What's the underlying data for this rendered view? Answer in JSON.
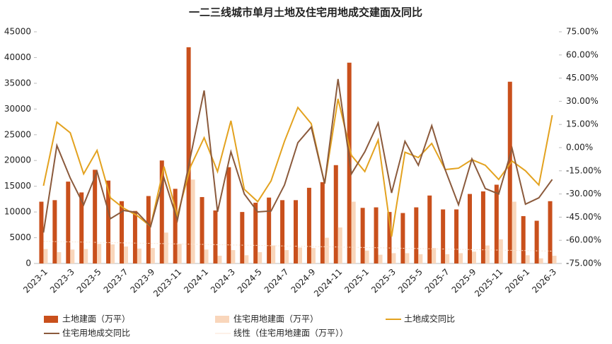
{
  "chart_data": {
    "type": "bar",
    "title": "一二三线城市单月土地及住宅用地成交建面及同比",
    "categories": [
      "2023-1",
      null,
      "2023-3",
      null,
      "2023-5",
      null,
      "2023-7",
      null,
      "2023-9",
      null,
      "2023-11",
      null,
      "2024-1",
      null,
      "2024-3",
      null,
      "2024-5",
      null,
      "2024-7",
      null,
      "2024-9",
      null,
      "2024-11",
      null,
      "2025-1",
      null,
      "2025-3",
      null,
      "2025-5",
      null,
      "2025-7",
      null,
      "2025-9",
      null,
      "2025-11",
      null,
      "2026-1",
      null,
      "2026-3"
    ],
    "ylim": [
      0,
      45000
    ],
    "yticks": [
      0,
      5000,
      10000,
      15000,
      20000,
      25000,
      30000,
      35000,
      40000,
      45000
    ],
    "y2lim": [
      -75,
      75
    ],
    "y2ticks": [
      {
        "value": -75,
        "label": "-75.00%"
      },
      {
        "value": -60,
        "label": "-60.00%"
      },
      {
        "value": -45,
        "label": "-45.00%"
      },
      {
        "value": -30,
        "label": "-30.00%"
      },
      {
        "value": -15,
        "label": "-15.00%"
      },
      {
        "value": 0,
        "label": "0.00%"
      },
      {
        "value": 15,
        "label": "15.00%"
      },
      {
        "value": 30,
        "label": "30.00%"
      },
      {
        "value": 45,
        "label": "45.00%"
      },
      {
        "value": 60,
        "label": "60.00%"
      },
      {
        "value": 75,
        "label": "75.00%"
      }
    ],
    "series": [
      {
        "name": "土地建面（万平）",
        "type": "bar",
        "color": "#c9501c",
        "values": [
          12000,
          12300,
          15900,
          13800,
          18200,
          16100,
          12100,
          10200,
          13100,
          20000,
          14500,
          42000,
          12900,
          10300,
          18700,
          10000,
          11800,
          12800,
          12300,
          12300,
          14700,
          15800,
          19100,
          39000,
          10800,
          10900,
          10000,
          9800,
          10900,
          13200,
          10500,
          10500,
          13500,
          14000,
          15300,
          35300,
          9200,
          8300,
          12100
        ]
      },
      {
        "name": "住宅用地建面（万平）",
        "type": "bar",
        "color": "#f9d6bb",
        "values": [
          2800,
          2200,
          2700,
          2800,
          3800,
          3700,
          3300,
          2900,
          3000,
          6000,
          3800,
          16300,
          2700,
          1500,
          2600,
          1600,
          2200,
          3500,
          2600,
          3100,
          3000,
          5000,
          7000,
          12000,
          2500,
          1700,
          2000,
          2000,
          1800,
          3000,
          1800,
          2000,
          2300,
          3500,
          4700,
          12000,
          1600,
          1000,
          1500
        ]
      },
      {
        "name": "土地成交同比",
        "type": "line",
        "axis": "y2",
        "color": "#e3a21f",
        "values": [
          -24.7,
          16.5,
          9.6,
          -17,
          -1.8,
          -32.5,
          -39.3,
          -44,
          -51,
          -12.3,
          -44,
          -12,
          6.4,
          -15.5,
          17.4,
          -27,
          -35,
          -21.5,
          4.1,
          26,
          15.5,
          -23.3,
          31.6,
          -5,
          -15.5,
          5,
          -57.6,
          -3,
          -6.4,
          2.7,
          -14.2,
          -13.3,
          -7.8,
          -11.4,
          -20.6,
          -8.7,
          -15,
          -24.2,
          21
        ]
      },
      {
        "name": "住宅用地成交同比",
        "type": "line",
        "axis": "y2",
        "color": "#8b5a3c",
        "values": [
          -55,
          1.4,
          -19.7,
          -37,
          -15.5,
          -46,
          -40.7,
          -42,
          -51,
          -19.7,
          -47,
          -5,
          37,
          -41.6,
          -2.7,
          -30,
          -41.6,
          -41,
          -24.2,
          3.2,
          13.3,
          -23.3,
          44.4,
          -17,
          -2.7,
          16,
          -29.3,
          4.1,
          -11.4,
          14.2,
          -14.2,
          -37,
          -7.3,
          -26.5,
          -30,
          -0.5,
          -36.6,
          -32.5,
          -20.6
        ]
      },
      {
        "name": "线性（住宅用地建面（万平））",
        "type": "line",
        "dash": true,
        "color": "#fbe3d0",
        "values": [
          4300,
          4250,
          4200,
          4150,
          4100,
          4050,
          4000,
          3950,
          3900,
          3850,
          3800,
          3750,
          3700,
          3650,
          3600,
          3550,
          3500,
          3450,
          3400,
          3350,
          3300,
          3250,
          3200,
          3150,
          3100,
          3050,
          3000,
          2950,
          2900,
          2850,
          2800,
          2750,
          2700,
          2650,
          2600,
          2550,
          2500,
          2450,
          2400
        ]
      }
    ]
  }
}
